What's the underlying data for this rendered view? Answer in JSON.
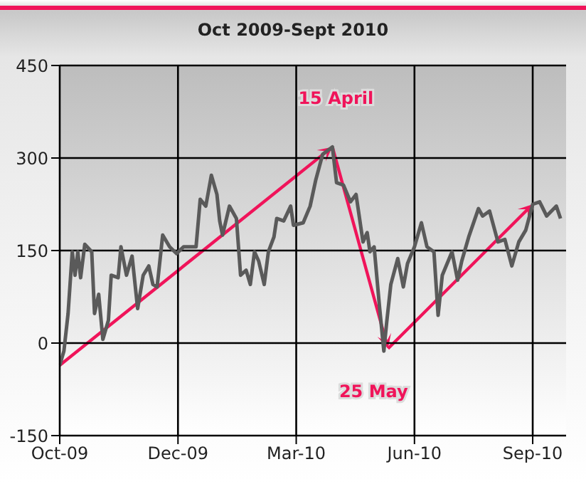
{
  "chart_data": {
    "type": "line",
    "title": "Oct 2009-Sept 2010",
    "x": [
      "2009-10-01",
      "2009-10-04",
      "2009-10-07",
      "2009-10-10",
      "2009-10-12",
      "2009-10-14",
      "2009-10-16",
      "2009-10-19",
      "2009-10-24",
      "2009-10-26",
      "2009-10-29",
      "2009-11-01",
      "2009-11-05",
      "2009-11-07",
      "2009-11-12",
      "2009-11-14",
      "2009-11-18",
      "2009-11-22",
      "2009-11-26",
      "2009-11-30",
      "2009-12-04",
      "2009-12-07",
      "2009-12-10",
      "2009-12-14",
      "2009-12-19",
      "2009-12-24",
      "2009-12-29",
      "2010-01-07",
      "2010-01-10",
      "2010-01-14",
      "2010-01-18",
      "2010-01-22",
      "2010-01-24",
      "2010-01-26",
      "2010-01-31",
      "2010-02-05",
      "2010-02-08",
      "2010-02-12",
      "2010-02-15",
      "2010-02-18",
      "2010-02-21",
      "2010-02-25",
      "2010-02-28",
      "2010-03-04",
      "2010-03-06",
      "2010-03-11",
      "2010-03-16",
      "2010-03-18",
      "2010-03-25",
      "2010-03-30",
      "2010-04-03",
      "2010-04-08",
      "2010-04-15",
      "2010-04-18",
      "2010-04-23",
      "2010-04-28",
      "2010-05-02",
      "2010-05-07",
      "2010-05-10",
      "2010-05-12",
      "2010-05-15",
      "2010-05-19",
      "2010-05-22",
      "2010-05-24",
      "2010-05-27",
      "2010-06-01",
      "2010-06-05",
      "2010-06-08",
      "2010-06-13",
      "2010-06-18",
      "2010-06-22",
      "2010-06-27",
      "2010-06-30",
      "2010-07-03",
      "2010-07-10",
      "2010-07-14",
      "2010-07-17",
      "2010-07-22",
      "2010-07-29",
      "2010-08-01",
      "2010-08-06",
      "2010-08-12",
      "2010-08-17",
      "2010-08-22",
      "2010-08-27",
      "2010-09-01",
      "2010-09-06",
      "2010-09-11",
      "2010-09-16",
      "2010-09-23",
      "2010-09-26"
    ],
    "series": [
      {
        "color": "#5a5a5a",
        "values": [
          -36,
          -13,
          48,
          148,
          110,
          148,
          106,
          160,
          148,
          48,
          79,
          6,
          37,
          110,
          106,
          156,
          110,
          141,
          56,
          110,
          125,
          95,
          91,
          175,
          156,
          145,
          156,
          156,
          233,
          222,
          272,
          241,
          198,
          175,
          222,
          202,
          110,
          118,
          95,
          148,
          133,
          95,
          148,
          172,
          202,
          198,
          222,
          191,
          195,
          222,
          264,
          306,
          318,
          260,
          256,
          229,
          241,
          164,
          179,
          148,
          156,
          56,
          -13,
          33,
          95,
          137,
          91,
          129,
          156,
          195,
          156,
          148,
          45,
          110,
          148,
          102,
          133,
          172,
          218,
          206,
          214,
          164,
          168,
          125,
          164,
          183,
          225,
          229,
          206,
          222,
          202
        ]
      }
    ],
    "xlim": [
      "2009-10-01",
      "2010-09-30"
    ],
    "xticks": [
      {
        "value": "2009-10-01",
        "label": "Oct-09"
      },
      {
        "value": "2009-12-25",
        "label": "Dec-09"
      },
      {
        "value": "2010-03-20",
        "label": "Mar-10"
      },
      {
        "value": "2010-06-13",
        "label": "Jun-10"
      },
      {
        "value": "2010-09-06",
        "label": "Sep-10"
      }
    ],
    "ylim": [
      -150,
      450
    ],
    "yticks": [
      -150,
      0,
      150,
      300,
      450
    ],
    "grid": true,
    "marker": "none",
    "line_style": "solid",
    "annotations": [
      {
        "text": "15 April",
        "x": "2010-04-15",
        "y": 318
      },
      {
        "text": "25 May",
        "x": "2010-05-25",
        "y": -9
      }
    ]
  }
}
